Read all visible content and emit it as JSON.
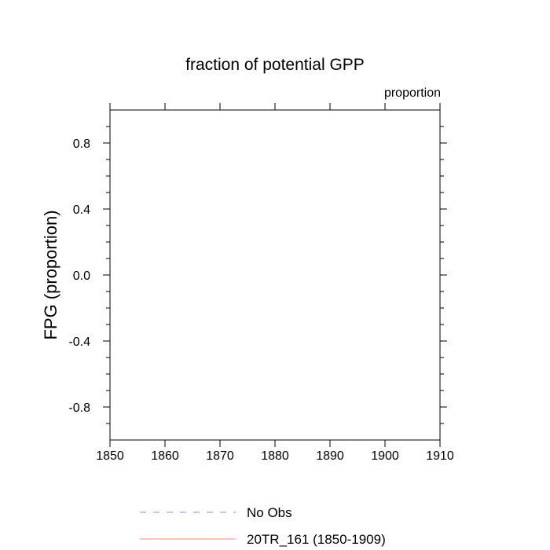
{
  "chart_data": {
    "type": "line",
    "title": "fraction of potential GPP",
    "units_label": "proportion",
    "xlabel": "",
    "ylabel": "FPG  (proportion)",
    "xlim": [
      1850,
      1910
    ],
    "ylim": [
      -1.0,
      1.0
    ],
    "x_ticks": [
      1850,
      1860,
      1870,
      1880,
      1890,
      1900,
      1910
    ],
    "x_tick_labels": [
      "1850",
      "1860",
      "1870",
      "1880",
      "1890",
      "1900",
      "1910"
    ],
    "y_ticks": [
      0.8,
      0.4,
      0.0,
      -0.4,
      -0.8
    ],
    "y_tick_labels": [
      "0.8",
      "0.4",
      "0.0",
      "-0.4",
      "-0.8"
    ],
    "y_minor_step": 0.1,
    "grid": false,
    "legend_position": "bottom",
    "series": [
      {
        "name": "No Obs",
        "color": "#8888ff",
        "dash": "dashed",
        "values": []
      },
      {
        "name": "20TR_161 (1850-1909)",
        "color": "#ff8888",
        "dash": "solid",
        "values": []
      }
    ]
  }
}
